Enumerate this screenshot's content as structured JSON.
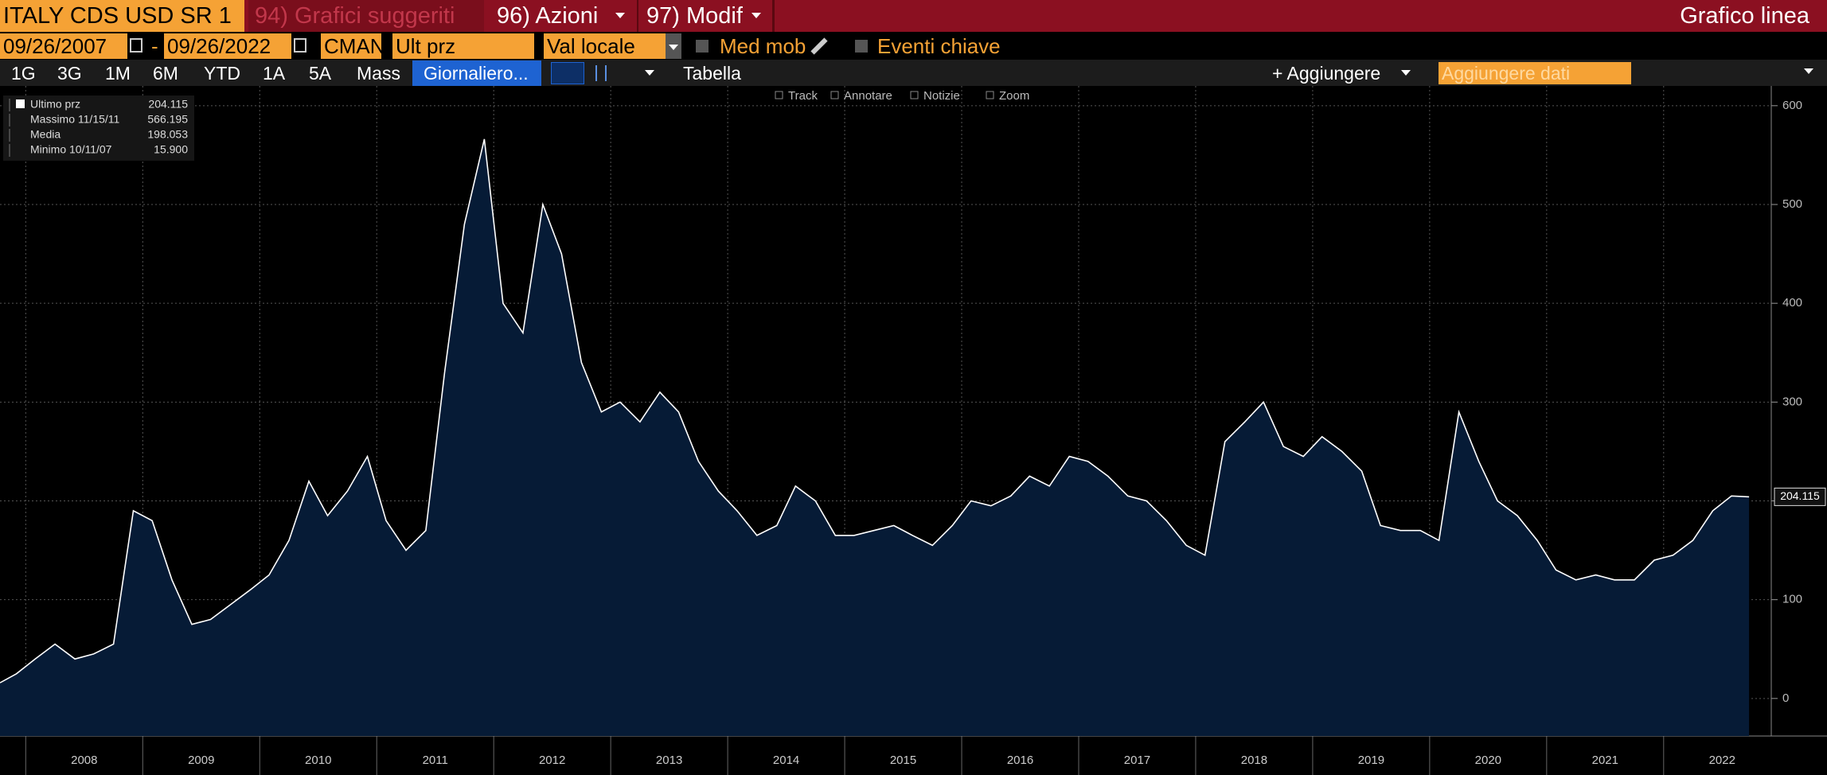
{
  "toolbar": {
    "security": "ITALY CDS USD SR 1",
    "menu": [
      "94) Grafici suggeriti",
      "96) Azioni",
      "97) Modif"
    ],
    "chart_kind": "Grafico linea",
    "start_date": "09/26/2007",
    "date_separator": "-",
    "end_date": "09/26/2022",
    "source": "CMAN",
    "field": "Ult prz",
    "currency": "Val locale",
    "options": [
      "Med mob",
      "Eventi chiave"
    ],
    "periods": [
      "1G",
      "3G",
      "1M",
      "6M",
      "YTD",
      "1A",
      "5A",
      "Mass"
    ],
    "frequency": "Giornaliero...",
    "table": "Tabella",
    "add": "+ Aggiungere",
    "add_data": "Aggiungere dati",
    "tools": [
      "Track",
      "Annotare",
      "Notizie",
      "Zoom"
    ]
  },
  "legend": [
    {
      "name": "Ultimo prz",
      "value": "204.115"
    },
    {
      "name": "Massimo 11/15/11",
      "value": "566.195"
    },
    {
      "name": "Media",
      "value": "198.053"
    },
    {
      "name": "Minimo 10/11/07",
      "value": "15.900"
    }
  ],
  "chart_data": {
    "type": "area",
    "color": "#ffffff",
    "fill": "#061b36",
    "grid": true,
    "x": [
      2007.78,
      2007.92,
      2008.08,
      2008.25,
      2008.42,
      2008.58,
      2008.75,
      2008.92,
      2009.08,
      2009.25,
      2009.42,
      2009.58,
      2009.75,
      2009.92,
      2010.08,
      2010.25,
      2010.42,
      2010.58,
      2010.75,
      2010.92,
      2011.08,
      2011.25,
      2011.42,
      2011.58,
      2011.75,
      2011.92,
      2012.08,
      2012.25,
      2012.42,
      2012.58,
      2012.75,
      2012.92,
      2013.08,
      2013.25,
      2013.42,
      2013.58,
      2013.75,
      2013.92,
      2014.08,
      2014.25,
      2014.42,
      2014.58,
      2014.75,
      2014.92,
      2015.08,
      2015.25,
      2015.42,
      2015.58,
      2015.75,
      2015.92,
      2016.08,
      2016.25,
      2016.42,
      2016.58,
      2016.75,
      2016.92,
      2017.08,
      2017.25,
      2017.42,
      2017.58,
      2017.75,
      2017.92,
      2018.08,
      2018.25,
      2018.42,
      2018.58,
      2018.75,
      2018.92,
      2019.08,
      2019.25,
      2019.42,
      2019.58,
      2019.75,
      2019.92,
      2020.08,
      2020.25,
      2020.42,
      2020.58,
      2020.75,
      2020.92,
      2021.08,
      2021.25,
      2021.42,
      2021.58,
      2021.75,
      2021.92,
      2022.08,
      2022.25,
      2022.42,
      2022.58,
      2022.73
    ],
    "values": [
      15.9,
      25,
      40,
      55,
      40,
      45,
      55,
      190,
      180,
      120,
      75,
      80,
      95,
      110,
      125,
      160,
      220,
      185,
      210,
      245,
      180,
      150,
      170,
      330,
      480,
      566.195,
      400,
      370,
      500,
      450,
      340,
      290,
      300,
      280,
      310,
      290,
      240,
      210,
      190,
      165,
      175,
      215,
      200,
      165,
      165,
      170,
      175,
      165,
      155,
      175,
      200,
      195,
      205,
      225,
      215,
      245,
      240,
      225,
      205,
      200,
      180,
      155,
      145,
      260,
      280,
      300,
      255,
      245,
      265,
      250,
      230,
      175,
      170,
      170,
      160,
      290,
      240,
      200,
      185,
      160,
      130,
      120,
      125,
      120,
      120,
      140,
      145,
      160,
      190,
      205,
      204.115
    ],
    "last_value_label": "204.115",
    "xlim": [
      2007.78,
      2022.92
    ],
    "xticks": [
      2008,
      2009,
      2010,
      2011,
      2012,
      2013,
      2014,
      2015,
      2016,
      2017,
      2018,
      2019,
      2020,
      2021,
      2022
    ],
    "ylim": [
      -38,
      620
    ],
    "yticks": [
      0,
      100,
      200,
      300,
      400,
      500,
      600
    ]
  }
}
